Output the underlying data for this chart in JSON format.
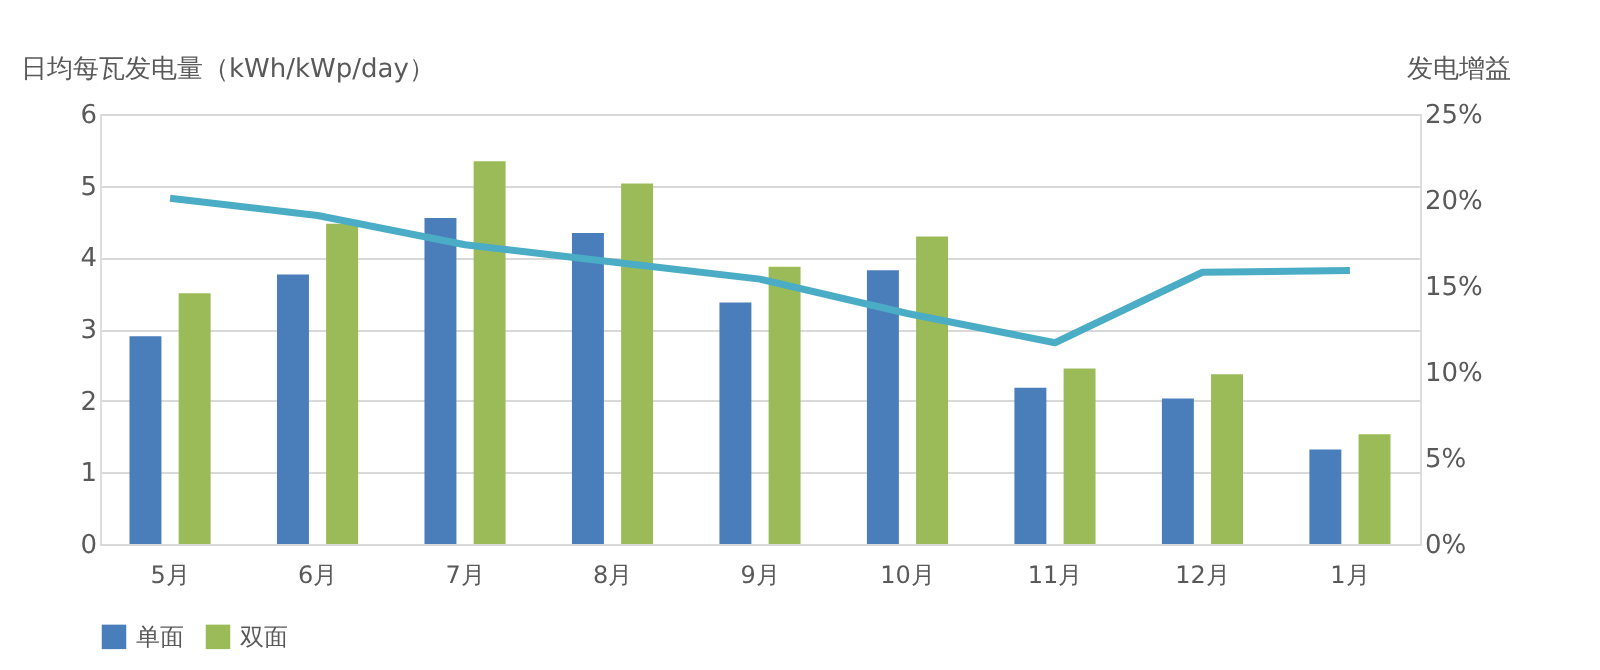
{
  "chart_data": {
    "type": "bar",
    "ylabel": "日均每瓦发电量（kWh/kWp/day）",
    "y2label": "发电增益",
    "categories": [
      "5月",
      "6月",
      "7月",
      "8月",
      "9月",
      "10月",
      "11月",
      "12月",
      "1月"
    ],
    "series": [
      {
        "name": "单面",
        "color": "#4a7ebb",
        "values": [
          2.9,
          3.76,
          4.55,
          4.34,
          3.37,
          3.82,
          2.18,
          2.03,
          1.32
        ]
      },
      {
        "name": "双面",
        "color": "#9bbb59",
        "values": [
          3.5,
          4.47,
          5.34,
          5.03,
          3.87,
          4.29,
          2.45,
          2.37,
          1.53
        ]
      },
      {
        "type": "line",
        "axis": "y2",
        "color": "#4bacc6",
        "values": [
          20.1,
          19.1,
          17.4,
          16.4,
          15.4,
          13.4,
          11.7,
          15.8,
          15.9
        ]
      }
    ],
    "ylim": [
      0,
      6
    ],
    "yticks": [
      0,
      1,
      2,
      3,
      4,
      5,
      6
    ],
    "y2lim": [
      0,
      25
    ],
    "y2ticks": [
      {
        "value": 0,
        "label": "0%"
      },
      {
        "value": 5,
        "label": "5%"
      },
      {
        "value": 10,
        "label": "10%"
      },
      {
        "value": 15,
        "label": "15%"
      },
      {
        "value": 20,
        "label": "20%"
      },
      {
        "value": 25,
        "label": "25%"
      }
    ],
    "grid": "y",
    "legend": "bottom"
  }
}
